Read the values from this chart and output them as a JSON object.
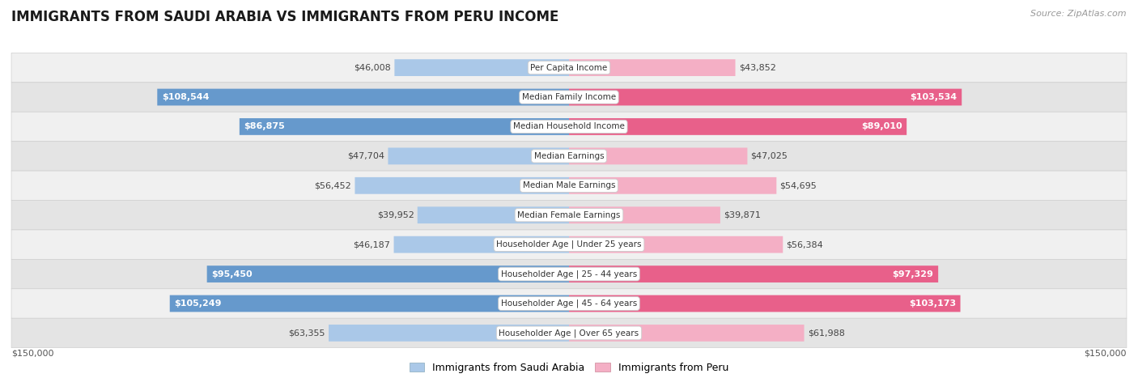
{
  "title": "IMMIGRANTS FROM SAUDI ARABIA VS IMMIGRANTS FROM PERU INCOME",
  "source": "Source: ZipAtlas.com",
  "categories": [
    "Per Capita Income",
    "Median Family Income",
    "Median Household Income",
    "Median Earnings",
    "Median Male Earnings",
    "Median Female Earnings",
    "Householder Age | Under 25 years",
    "Householder Age | 25 - 44 years",
    "Householder Age | 45 - 64 years",
    "Householder Age | Over 65 years"
  ],
  "saudi_values": [
    46008,
    108544,
    86875,
    47704,
    56452,
    39952,
    46187,
    95450,
    105249,
    63355
  ],
  "peru_values": [
    43852,
    103534,
    89010,
    47025,
    54695,
    39871,
    56384,
    97329,
    103173,
    61988
  ],
  "saudi_color_light": "#aac8e8",
  "saudi_color_dark": "#6699cc",
  "peru_color_light": "#f4afc5",
  "peru_color_dark": "#e8608a",
  "max_value": 150000,
  "label_saudi": "Immigrants from Saudi Arabia",
  "label_peru": "Immigrants from Peru",
  "axis_label": "$150,000",
  "row_bg_odd": "#f0f0f0",
  "row_bg_even": "#e4e4e4",
  "row_border": "#d0d0d0",
  "title_fontsize": 12,
  "source_fontsize": 8,
  "bar_label_fontsize": 8,
  "category_fontsize": 7.5,
  "legend_fontsize": 9,
  "axis_fontsize": 8,
  "inside_threshold": 65000
}
